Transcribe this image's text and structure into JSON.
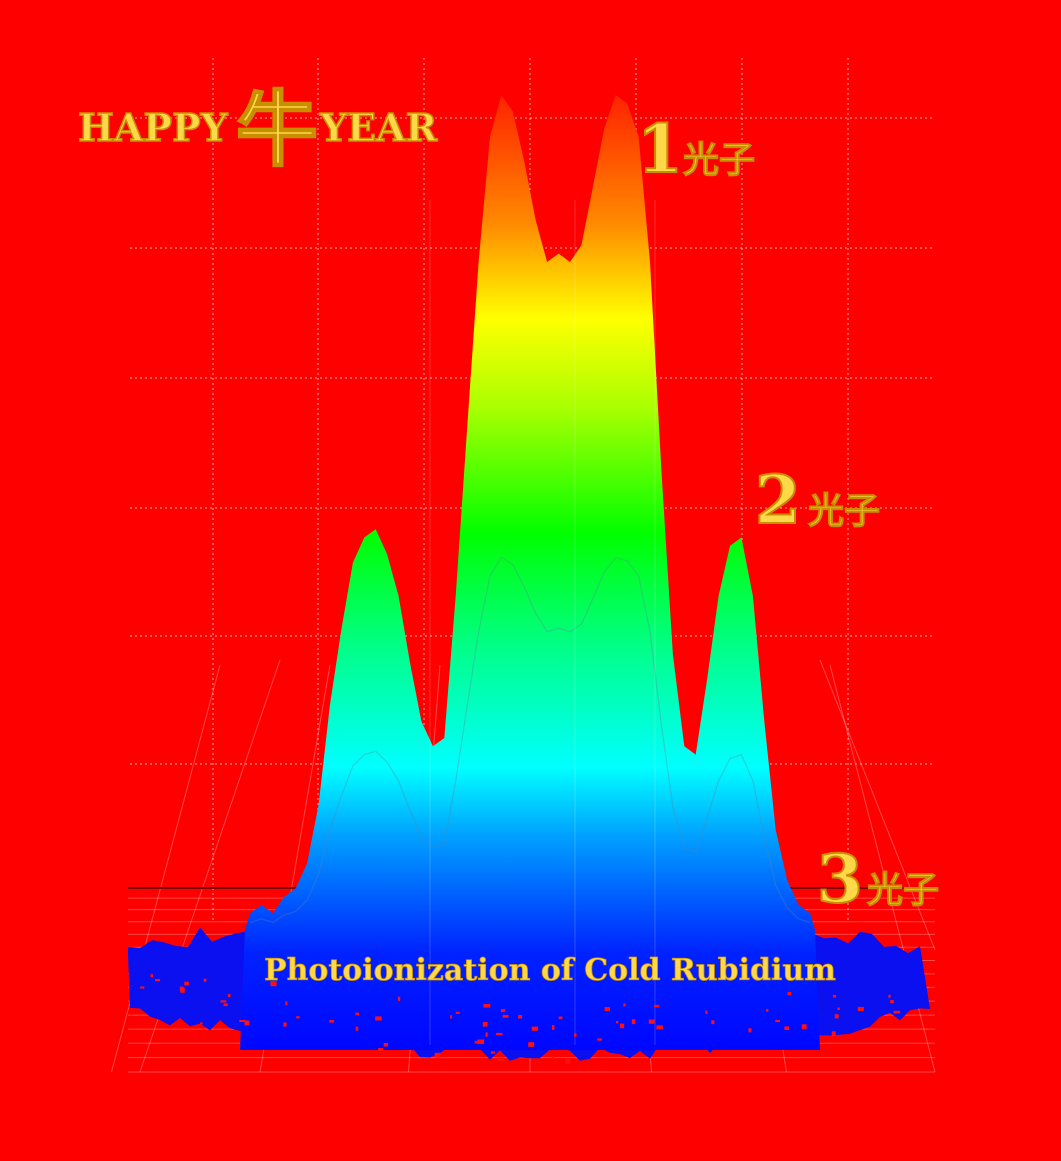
{
  "page": {
    "background": "#ff0000",
    "accent_text_color": "#ffd84a",
    "outline_color": "#c89000"
  },
  "chart_data": {
    "type": "area",
    "title": "Photoionization of Cold Rubidium",
    "banner": {
      "left": "HAPPY",
      "center": "牛",
      "right": "YEAR"
    },
    "peak_labels": [
      {
        "number": "1",
        "unit": "光子"
      },
      {
        "number": "2",
        "unit": "光子"
      },
      {
        "number": "3",
        "unit": "光子"
      }
    ],
    "grid": true,
    "colormap": [
      "#0000ff",
      "#00aaff",
      "#00ffff",
      "#00ff66",
      "#00ff00",
      "#aaff00",
      "#ffff00",
      "#ff8800",
      "#ff2200"
    ],
    "profile": [
      0.02,
      0.03,
      0.02,
      0.04,
      0.05,
      0.08,
      0.15,
      0.27,
      0.36,
      0.44,
      0.47,
      0.48,
      0.45,
      0.4,
      0.32,
      0.25,
      0.22,
      0.23,
      0.4,
      0.6,
      0.8,
      0.95,
      1.0,
      0.98,
      0.92,
      0.85,
      0.8,
      0.81,
      0.8,
      0.82,
      0.89,
      0.96,
      1.0,
      0.99,
      0.95,
      0.8,
      0.55,
      0.33,
      0.22,
      0.21,
      0.3,
      0.4,
      0.46,
      0.47,
      0.4,
      0.25,
      0.12,
      0.06,
      0.03,
      0.02
    ]
  }
}
